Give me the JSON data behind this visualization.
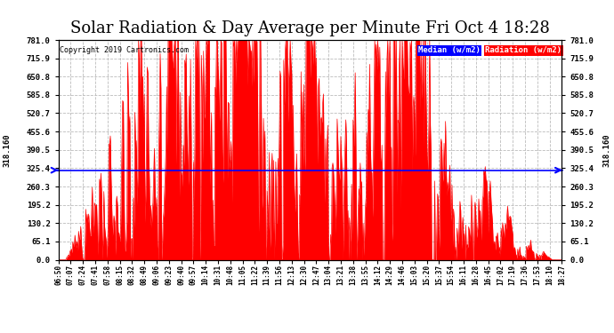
{
  "title": "Solar Radiation & Day Average per Minute Fri Oct 4 18:28",
  "copyright": "Copyright 2019 Cartronics.com",
  "median_value": 318.16,
  "ymin": 0.0,
  "ymax": 781.0,
  "yticks": [
    0.0,
    65.1,
    130.2,
    195.2,
    260.3,
    325.4,
    390.5,
    455.6,
    520.7,
    585.8,
    650.8,
    715.9,
    781.0
  ],
  "fill_color": "#FF0000",
  "median_line_color": "#0000FF",
  "background_color": "#FFFFFF",
  "plot_bg_color": "#FFFFFF",
  "grid_color": "#BBBBBB",
  "legend_median_bg": "#0000FF",
  "legend_radiation_bg": "#FF0000",
  "legend_text_color": "#FFFFFF",
  "title_fontsize": 13,
  "label_fontsize": 7,
  "xtick_labels": [
    "06:50",
    "07:07",
    "07:24",
    "07:41",
    "07:58",
    "08:15",
    "08:32",
    "08:49",
    "09:06",
    "09:23",
    "09:40",
    "09:57",
    "10:14",
    "10:31",
    "10:48",
    "11:05",
    "11:22",
    "11:39",
    "11:56",
    "12:13",
    "12:30",
    "12:47",
    "13:04",
    "13:21",
    "13:38",
    "13:55",
    "14:12",
    "14:29",
    "14:46",
    "15:03",
    "15:20",
    "15:37",
    "15:54",
    "16:11",
    "16:28",
    "16:45",
    "17:02",
    "17:19",
    "17:36",
    "17:53",
    "18:10",
    "18:27"
  ]
}
